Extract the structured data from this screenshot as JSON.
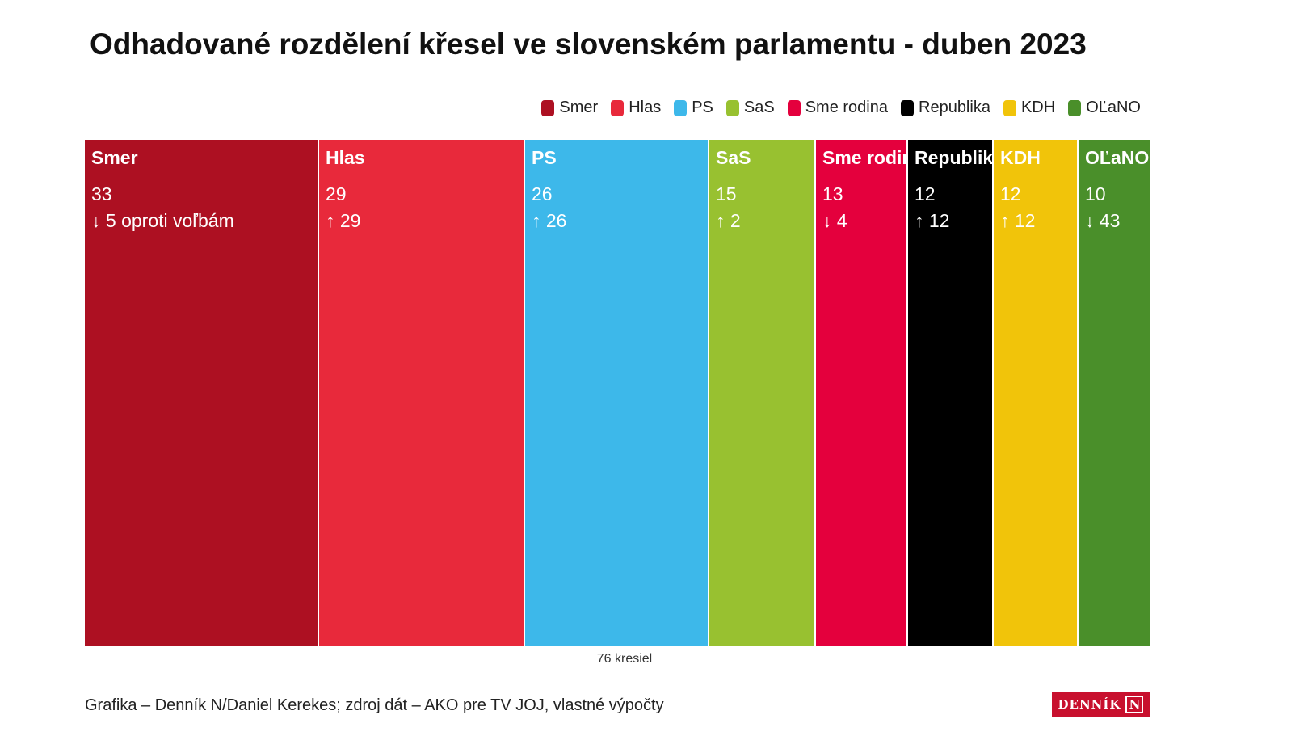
{
  "title": "Odhadované rozdělení křesel ve slovenském parlamentu - duben 2023",
  "chart_data": {
    "type": "bar",
    "orientation": "horizontal-stacked",
    "title": "Odhadované rozdělení křesel ve slovenském parlamentu - duben 2023",
    "total_seats": 150,
    "majority": 76,
    "majority_label": "76 kresiel",
    "series": [
      {
        "name": "Smer",
        "seats": 33,
        "seats_label": "33",
        "change_label": "↓ 5 oproti voľbám",
        "color": "#ad1022",
        "text_color": "#ffffff"
      },
      {
        "name": "Hlas",
        "seats": 29,
        "seats_label": "29",
        "change_label": "↑ 29",
        "color": "#e8293b",
        "text_color": "#ffffff"
      },
      {
        "name": "PS",
        "seats": 26,
        "seats_label": "26",
        "change_label": "↑ 26",
        "color": "#3db8ea",
        "text_color": "#ffffff"
      },
      {
        "name": "SaS",
        "seats": 15,
        "seats_label": "15",
        "change_label": "↑ 2",
        "color": "#98c130",
        "text_color": "#ffffff"
      },
      {
        "name": "Sme rodina",
        "seats": 13,
        "seats_label": "13",
        "change_label": "↓ 4",
        "color": "#e4003d",
        "text_color": "#ffffff"
      },
      {
        "name": "Republika",
        "seats": 12,
        "seats_label": "12",
        "change_label": "↑ 12",
        "color": "#000000",
        "text_color": "#ffffff"
      },
      {
        "name": "KDH",
        "seats": 12,
        "seats_label": "12",
        "change_label": "↑ 12",
        "color": "#f1c40a",
        "text_color": "#ffffff"
      },
      {
        "name": "OĽaNO",
        "seats": 10,
        "seats_label": "10",
        "change_label": "↓ 43",
        "color": "#4a8f2a",
        "text_color": "#ffffff"
      }
    ],
    "legend_position": "top-right"
  },
  "source": "Grafika – Denník N/Daniel Kerekes; zdroj dát – AKO pre TV JOJ, vlastné výpočty",
  "logo": {
    "text": "DENNÍK",
    "mark": "N"
  }
}
